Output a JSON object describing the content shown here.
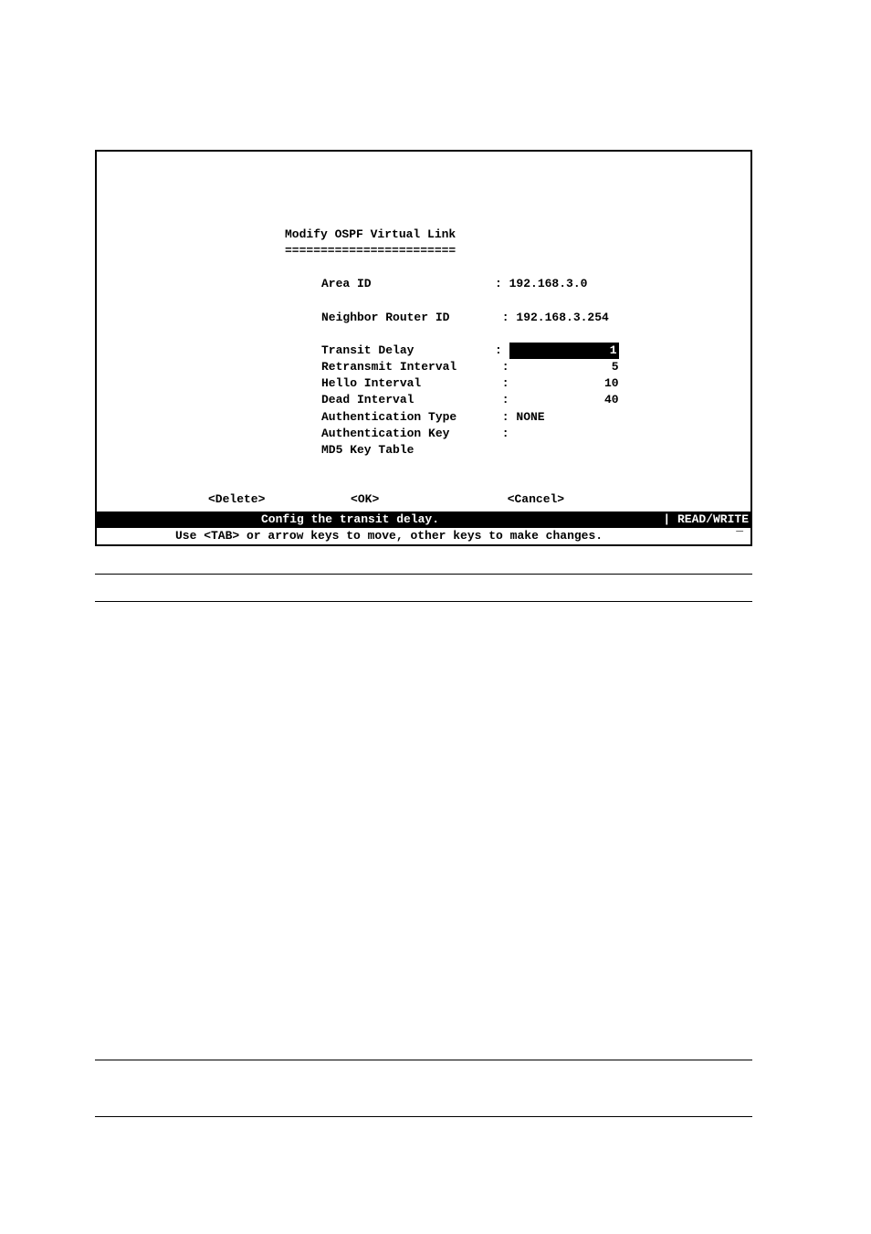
{
  "screen": {
    "title": "Modify OSPF Virtual Link",
    "underline": "========================",
    "fields": {
      "area_id": {
        "label": "Area ID",
        "separator": ": ",
        "value": "192.168.3.0"
      },
      "neighbor_router_id": {
        "label": "Neighbor Router ID",
        "separator": " : ",
        "value": "192.168.3.254"
      },
      "transit_delay": {
        "label": "Transit Delay",
        "separator": ": ",
        "value": "1",
        "highlighted": true
      },
      "retransmit_interval": {
        "label": "Retransmit Interval",
        "separator": ":",
        "value": "5"
      },
      "hello_interval": {
        "label": "Hello Interval",
        "separator": ":",
        "value": "10"
      },
      "dead_interval": {
        "label": "Dead Interval",
        "separator": ":",
        "value": "40"
      },
      "authentication_type": {
        "label": "Authentication Type",
        "separator": ": ",
        "value": "NONE"
      },
      "authentication_key": {
        "label": "Authentication Key",
        "separator": " :",
        "value": ""
      },
      "md5_key_table": {
        "label": "MD5 Key Table",
        "separator": "",
        "value": ""
      }
    },
    "buttons": {
      "delete": "<Delete>",
      "ok": "<OK>",
      "cancel": "<Cancel>"
    },
    "status_bar": {
      "message": "Config the transit delay.",
      "mode": "| READ/WRITE"
    },
    "hint": "Use <TAB> or arrow keys to move, other keys to make changes.",
    "cursor": "_"
  },
  "styling": {
    "background_color": "#ffffff",
    "text_color": "#000000",
    "highlight_bg": "#000000",
    "highlight_fg": "#ffffff",
    "border_color": "#000000",
    "font_family": "Courier New",
    "font_size": 13,
    "font_weight": "bold"
  }
}
